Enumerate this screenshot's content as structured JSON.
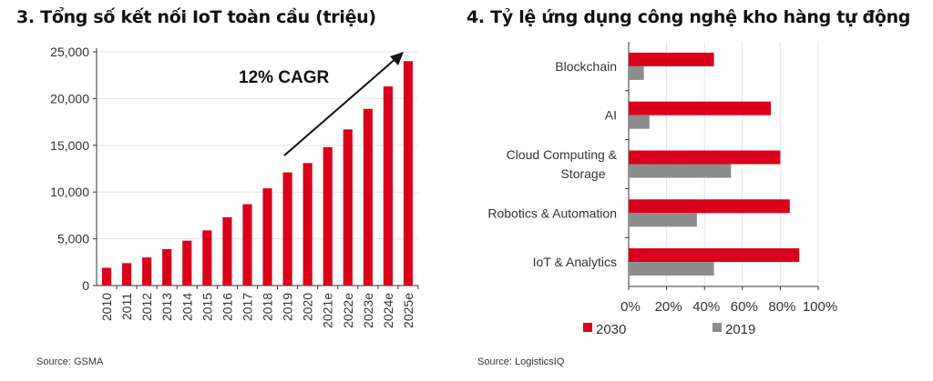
{
  "chart_data": [
    {
      "type": "bar",
      "title": "3. Tổng số kết nối IoT toàn cầu (triệu)",
      "categories": [
        "2010",
        "2011",
        "2012",
        "2013",
        "2014",
        "2015",
        "2016",
        "2017",
        "2018",
        "2019",
        "2020",
        "2021e",
        "2022e",
        "2023e",
        "2024e",
        "2025e"
      ],
      "values": [
        1900,
        2400,
        3000,
        3900,
        4800,
        5900,
        7300,
        8700,
        10400,
        12100,
        13100,
        14800,
        16700,
        18900,
        21300,
        24000
      ],
      "yticks": [
        "0",
        "5,000",
        "10,000",
        "15,000",
        "20,000",
        "25,000"
      ],
      "ylim": [
        0,
        25000
      ],
      "annotation": "12% CAGR",
      "source": "Source: GSMA",
      "color": "#d9001b",
      "grid": true
    },
    {
      "type": "bar",
      "orientation": "horizontal",
      "title": "4. Tỷ lệ ứng dụng công nghệ kho hàng tự động",
      "categories": [
        "Blockchain",
        "AI",
        "Cloud Computing &|Storage",
        "Robotics & Automation",
        "IoT & Analytics"
      ],
      "series": [
        {
          "name": "2030",
          "values": [
            45,
            75,
            80,
            85,
            90
          ],
          "color": "#d9001b"
        },
        {
          "name": "2019",
          "values": [
            8,
            11,
            54,
            36,
            45
          ],
          "color": "#8c8c8c"
        }
      ],
      "xticks": [
        "0%",
        "20%",
        "40%",
        "60%",
        "80%",
        "100%"
      ],
      "xlim": [
        0,
        100
      ],
      "legend": "bottom",
      "source": "Source: LogisticsIQ",
      "grid": true
    }
  ]
}
